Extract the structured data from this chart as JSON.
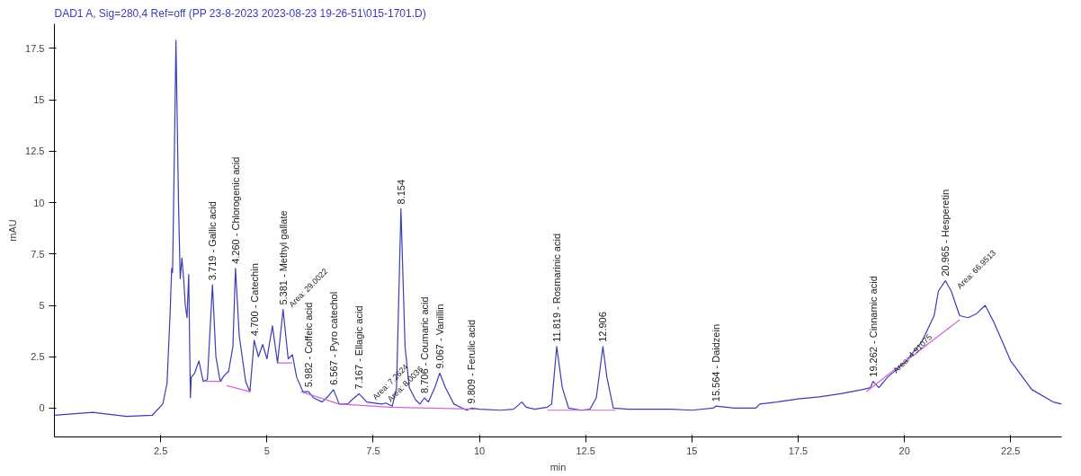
{
  "chart_data": {
    "type": "line",
    "title": "DAD1 A, Sig=280,4 Ref=off (PP 23-8-2023 2023-08-23 19-26-51\\015-1701.D)",
    "xlabel": "min",
    "ylabel": "mAU",
    "xlim": [
      0,
      23.7
    ],
    "ylim": [
      -1.4,
      18.7
    ],
    "xticks": [
      2.5,
      5,
      7.5,
      10,
      12.5,
      15,
      17.5,
      20,
      22.5
    ],
    "yticks": [
      0,
      2.5,
      5,
      7.5,
      10,
      12.5,
      15,
      17.5
    ],
    "grid": false,
    "marker": "none",
    "line_style": "solid",
    "series": [
      {
        "color": "#3c3cb4",
        "x": [
          0,
          0.9,
          1.7,
          2.3,
          2.55,
          2.65,
          2.72,
          2.76,
          2.78,
          2.82,
          2.86,
          2.92,
          2.96,
          3.0,
          3.04,
          3.08,
          3.12,
          3.16,
          3.2,
          3.22,
          3.3,
          3.4,
          3.5,
          3.6,
          3.719,
          3.8,
          3.9,
          4.0,
          4.1,
          4.2,
          4.26,
          4.35,
          4.5,
          4.6,
          4.7,
          4.8,
          4.9,
          5.0,
          5.13,
          5.25,
          5.381,
          5.5,
          5.6,
          5.7,
          5.85,
          5.982,
          6.1,
          6.3,
          6.45,
          6.567,
          6.7,
          6.9,
          7.0,
          7.167,
          7.35,
          7.7,
          7.8,
          7.95,
          8.05,
          8.154,
          8.25,
          8.35,
          8.5,
          8.6,
          8.706,
          8.8,
          8.95,
          9.067,
          9.2,
          9.4,
          9.6,
          9.7,
          9.809,
          10.0,
          10.5,
          10.8,
          11.0,
          11.1,
          11.3,
          11.6,
          11.7,
          11.819,
          11.95,
          12.1,
          12.4,
          12.6,
          12.75,
          12.906,
          13.0,
          13.15,
          13.5,
          14,
          14.5,
          15,
          15.5,
          15.564,
          16.0,
          16.5,
          16.6,
          17,
          17.5,
          18.0,
          18.5,
          19.0,
          19.2,
          19.262,
          19.4,
          19.6,
          20.0,
          20.4,
          20.7,
          20.8,
          20.965,
          21.1,
          21.3,
          21.5,
          21.7,
          21.9,
          22.1,
          22.5,
          23.0,
          23.5,
          23.7
        ],
        "values": [
          -0.35,
          -0.2,
          -0.4,
          -0.35,
          0.2,
          1.2,
          4.5,
          6.8,
          6.6,
          12,
          17.9,
          10,
          6.3,
          7.3,
          6.3,
          5.0,
          4.4,
          6.5,
          0.5,
          1.5,
          1.7,
          2.3,
          1.3,
          1.4,
          6.0,
          2.5,
          1.3,
          1.6,
          1.8,
          3.0,
          6.8,
          3.5,
          1.3,
          0.8,
          3.3,
          2.5,
          3.1,
          2.4,
          4.0,
          2.2,
          4.8,
          2.4,
          2.6,
          1.5,
          0.8,
          0.8,
          0.5,
          0.3,
          0.6,
          0.9,
          0.2,
          0.2,
          0.4,
          0.7,
          0.3,
          0.2,
          0.25,
          0.1,
          1.0,
          9.7,
          3.0,
          1.0,
          0.4,
          0.2,
          0.5,
          0.3,
          1.0,
          1.7,
          1.0,
          0.2,
          0.0,
          -0.1,
          0.0,
          -0.05,
          -0.1,
          -0.05,
          0.3,
          0.05,
          -0.05,
          0.05,
          0.2,
          3.0,
          1.0,
          0.0,
          -0.1,
          -0.05,
          0.5,
          3.0,
          1.5,
          0.0,
          -0.05,
          -0.05,
          -0.05,
          -0.1,
          0.0,
          0.1,
          0.0,
          0.0,
          0.2,
          0.3,
          0.45,
          0.55,
          0.7,
          0.9,
          1.0,
          1.3,
          1.0,
          1.5,
          2.2,
          3.2,
          4.5,
          5.7,
          6.2,
          5.7,
          4.5,
          4.4,
          4.6,
          5.0,
          4.2,
          2.3,
          0.9,
          0.3,
          0.2
        ]
      },
      {
        "color": "#d264d2",
        "x": [
          3.55,
          3.95,
          null,
          4.05,
          4.6,
          null,
          5.25,
          5.6,
          null,
          5.8,
          6.7,
          7.9,
          9.9,
          null,
          11.6,
          13.2,
          null,
          19.1,
          19.6,
          21.3
        ],
        "values": [
          1.3,
          1.3,
          null,
          1.1,
          0.8,
          null,
          2.2,
          2.2,
          null,
          0.8,
          0.2,
          0.05,
          -0.05,
          null,
          -0.1,
          -0.1,
          null,
          0.8,
          1.6,
          4.3
        ]
      }
    ],
    "annotations": [
      {
        "text": "3.719 - Gallic acid",
        "x": 3.719,
        "y": 6.0
      },
      {
        "text": "4.260 - Chlorogenic acid",
        "x": 4.26,
        "y": 6.8
      },
      {
        "text": "4.700 - Catechin",
        "x": 4.7,
        "y": 3.3
      },
      {
        "text": "5.381 - Methyl gallate",
        "x": 5.381,
        "y": 4.8
      },
      {
        "text": "5.982 - Coffeic acid",
        "x": 5.982,
        "y": 0.8
      },
      {
        "text": "6.567 - Pyro catechol",
        "x": 6.567,
        "y": 0.9
      },
      {
        "text": "7.167 - Ellagic acid",
        "x": 7.167,
        "y": 0.7
      },
      {
        "text": "8.154",
        "x": 8.154,
        "y": 9.7
      },
      {
        "text": "8.706 - Coumaric acid",
        "x": 8.706,
        "y": 0.5
      },
      {
        "text": "9.067 - Vanillin",
        "x": 9.067,
        "y": 1.7
      },
      {
        "text": "9.809 - Ferulic acid",
        "x": 9.809,
        "y": 0.0
      },
      {
        "text": "11.819 - Rosmarinic acid",
        "x": 11.819,
        "y": 3.0
      },
      {
        "text": "12.906",
        "x": 12.906,
        "y": 3.0
      },
      {
        "text": "15.564 - Daidzein",
        "x": 15.564,
        "y": 0.1
      },
      {
        "text": "19.262 - Cinnamic acid",
        "x": 19.262,
        "y": 1.3
      },
      {
        "text": "20.965 - Hesperetin",
        "x": 20.965,
        "y": 6.2
      },
      {
        "text": "Area: 29.0022",
        "x": 5.381,
        "y": 4.8
      },
      {
        "text": "Area: 7.2624",
        "x": 7.35,
        "y": 0.3
      },
      {
        "text": "Area: 8.0036",
        "x": 7.7,
        "y": 0.2
      },
      {
        "text": "Area: 4.91075",
        "x": 19.6,
        "y": 1.6
      },
      {
        "text": "Area: 66.9513",
        "x": 21.1,
        "y": 5.7
      }
    ]
  }
}
